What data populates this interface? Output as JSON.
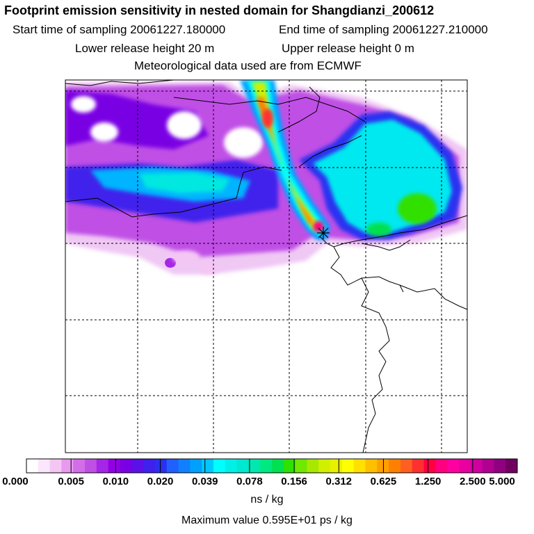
{
  "header": {
    "title": "Footprint emission sensitivity in nested domain for Shangdianzi_200612",
    "start_time": "Start time of sampling 20061227.180000",
    "end_time": "End time of sampling 20061227.210000",
    "lower_height": "Lower release height   20 m",
    "upper_height": "Upper release height    0 m",
    "met_data": "Meteorological data used are from ECMWF"
  },
  "colorbar": {
    "tick_labels": [
      "0.000",
      "0.005",
      "0.010",
      "0.020",
      "0.039",
      "0.078",
      "0.156",
      "0.312",
      "0.625",
      "1.250",
      "2.500",
      "5.000"
    ],
    "colors": [
      "#ffffff",
      "#fbe6fb",
      "#f4c6f4",
      "#e999f0",
      "#d36de9",
      "#c04fe6",
      "#a526e6",
      "#9300e6",
      "#7a00e4",
      "#5c10e8",
      "#4020ec",
      "#2a30f0",
      "#2060ff",
      "#1080ff",
      "#00a0ff",
      "#00c8ff",
      "#00ffff",
      "#00f0e8",
      "#00e8d0",
      "#00e8b0",
      "#00e880",
      "#00e050",
      "#30e000",
      "#70e800",
      "#a8e800",
      "#d0f000",
      "#e8f000",
      "#ffff00",
      "#ffe000",
      "#ffc000",
      "#ffa000",
      "#ff8000",
      "#ff6020",
      "#ff3030",
      "#ff0040",
      "#ff0080",
      "#ff00a0",
      "#e800a0",
      "#d000a0",
      "#b00090",
      "#900080",
      "#700060"
    ],
    "unit": "ns / kg",
    "max_value": "Maximum value  0.595E+01 ps / kg"
  },
  "map": {
    "receptor": "Shangdianzi"
  }
}
